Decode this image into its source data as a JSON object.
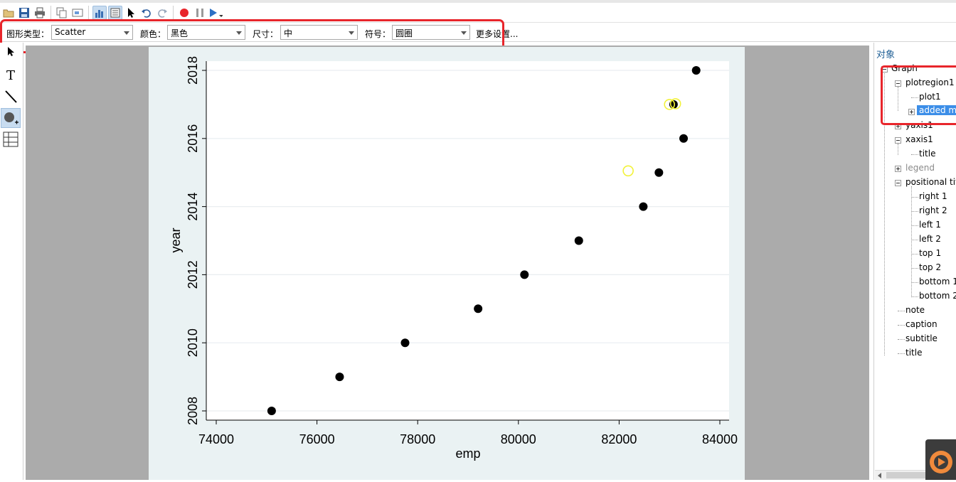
{
  "toolbar": {
    "icons": [
      "open-icon",
      "save-icon",
      "print-icon",
      "copy-icon",
      "rename-icon",
      "graph-editor-icon",
      "object-browser-icon",
      "pointer-icon",
      "undo-icon",
      "redo-icon",
      "record-icon",
      "pause-icon",
      "play-icon"
    ]
  },
  "propbar": {
    "type_label": "图形类型：",
    "type_value": "Scatter",
    "color_label": "颜色：",
    "color_value": "黑色",
    "size_label": "尺寸：",
    "size_value": "中",
    "symbol_label": "符号：",
    "symbol_value": "圆圈",
    "more_label": "更多设置..."
  },
  "tools": {
    "text_label": "T"
  },
  "panel": {
    "title": "对象",
    "tree": [
      {
        "label": "Graph",
        "style": "normal"
      },
      {
        "label": "plotregion1",
        "style": "normal"
      },
      {
        "label": "plot1",
        "style": "normal"
      },
      {
        "label": "added m",
        "style": "selected"
      },
      {
        "label": "yaxis1",
        "style": "normal"
      },
      {
        "label": "xaxis1",
        "style": "normal"
      },
      {
        "label": "title",
        "style": "normal"
      },
      {
        "label": "legend",
        "style": "muted"
      },
      {
        "label": "positional tit",
        "style": "normal"
      },
      {
        "label": "right 1",
        "style": "normal"
      },
      {
        "label": "right 2",
        "style": "normal"
      },
      {
        "label": "left 1",
        "style": "normal"
      },
      {
        "label": "left 2",
        "style": "normal"
      },
      {
        "label": "top 1",
        "style": "normal"
      },
      {
        "label": "top 2",
        "style": "normal"
      },
      {
        "label": "bottom 1",
        "style": "normal"
      },
      {
        "label": "bottom 2",
        "style": "normal"
      },
      {
        "label": "note",
        "style": "normal"
      },
      {
        "label": "caption",
        "style": "normal"
      },
      {
        "label": "subtitle",
        "style": "normal"
      },
      {
        "label": "title",
        "style": "normal"
      }
    ]
  },
  "colors": {
    "highlight": "#e8252b",
    "selection": "#3c8ee8",
    "marker": "#000000",
    "added_marker": "#f2f23a",
    "plot_bg": "#ffffff",
    "graph_bg": "#eaf2f3"
  },
  "chart_data": {
    "type": "scatter",
    "xlabel": "emp",
    "ylabel": "year",
    "xlim": [
      74000,
      84000
    ],
    "ylim": [
      2008,
      2018
    ],
    "xticks": [
      74000,
      76000,
      78000,
      80000,
      82000,
      84000
    ],
    "yticks": [
      2008,
      2010,
      2012,
      2014,
      2016,
      2018
    ],
    "grid": true,
    "series": [
      {
        "x": [
          75100,
          76450,
          77750,
          79200,
          80120,
          81200,
          82480,
          82790,
          83080,
          83280,
          83530
        ],
        "y": [
          2008,
          2009,
          2010,
          2011,
          2012,
          2013,
          2014,
          2015,
          2017,
          2016,
          2018
        ]
      }
    ],
    "added_markers": [
      {
        "x": 82180,
        "y": 2015.05
      },
      {
        "x": 83000,
        "y": 2017
      },
      {
        "x": 83120,
        "y": 2017.02
      }
    ]
  }
}
